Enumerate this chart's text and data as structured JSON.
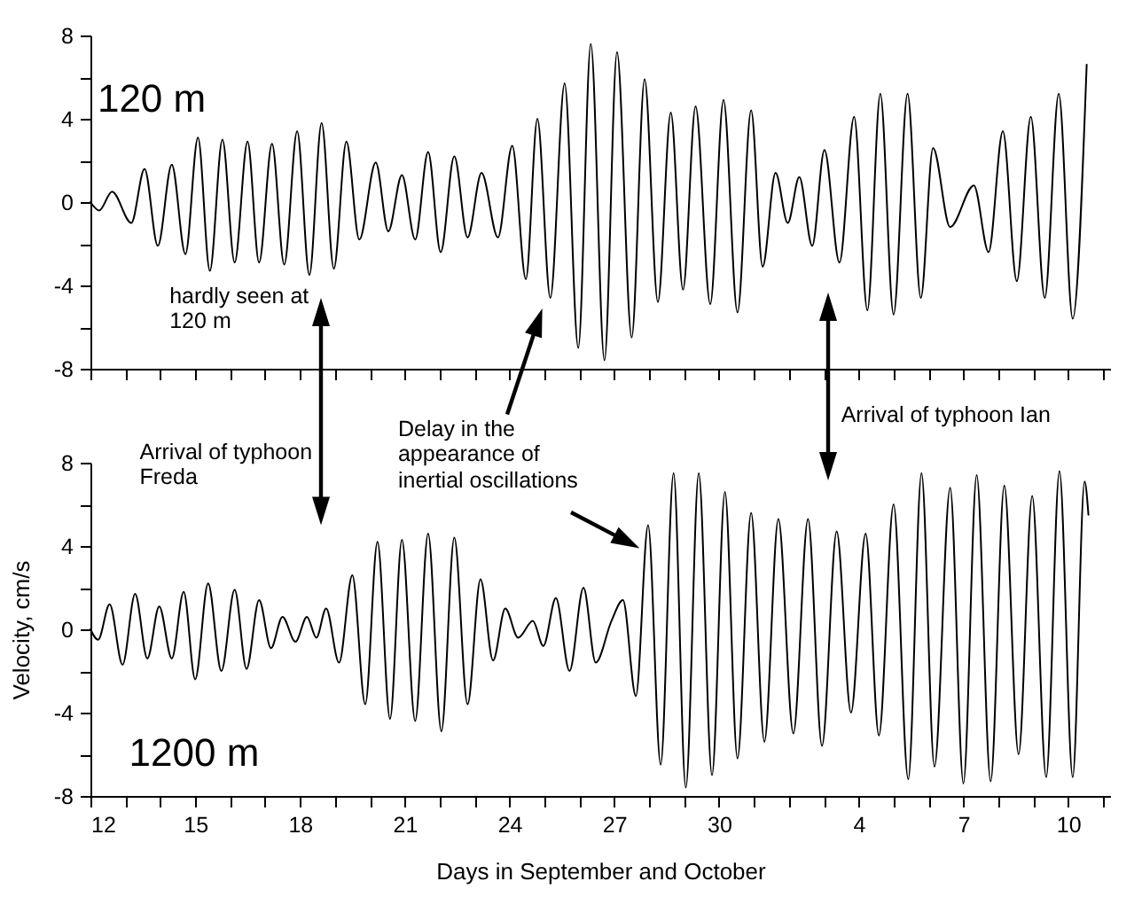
{
  "chart_data": [
    {
      "type": "line",
      "xlim": [
        "--09-12",
        "--10-11T04:48"
      ],
      "ylim": [
        -8,
        8
      ],
      "xticks": [
        {
          "value": "--09-12",
          "label": null
        },
        {
          "value": "--09-13",
          "label": null
        },
        {
          "value": "--09-14",
          "label": null
        },
        {
          "value": "--09-15",
          "label": null
        },
        {
          "value": "--09-16",
          "label": null
        },
        {
          "value": "--09-17",
          "label": null
        },
        {
          "value": "--09-18",
          "label": null
        },
        {
          "value": "--09-19",
          "label": null
        },
        {
          "value": "--09-20",
          "label": null
        },
        {
          "value": "--09-21",
          "label": null
        },
        {
          "value": "--09-22",
          "label": null
        },
        {
          "value": "--09-23",
          "label": null
        },
        {
          "value": "--09-24",
          "label": null
        },
        {
          "value": "--09-25",
          "label": null
        },
        {
          "value": "--09-26",
          "label": null
        },
        {
          "value": "--09-27",
          "label": null
        },
        {
          "value": "--09-28",
          "label": null
        },
        {
          "value": "--09-29",
          "label": null
        },
        {
          "value": "--09-30",
          "label": null
        },
        {
          "value": "--10-01",
          "label": null
        },
        {
          "value": "--10-02",
          "label": null
        },
        {
          "value": "--10-03",
          "label": null
        },
        {
          "value": "--10-04",
          "label": null
        },
        {
          "value": "--10-05",
          "label": null
        },
        {
          "value": "--10-06",
          "label": null
        },
        {
          "value": "--10-07",
          "label": null
        },
        {
          "value": "--10-08",
          "label": null
        },
        {
          "value": "--10-09",
          "label": null
        },
        {
          "value": "--10-10",
          "label": null
        },
        {
          "value": "--10-11",
          "label": null
        }
      ],
      "yticks": [
        -8,
        {
          "value": -6,
          "label": null
        },
        -4,
        {
          "value": -2,
          "label": null
        },
        0,
        {
          "value": 2,
          "label": null
        },
        4,
        {
          "value": 6,
          "label": null
        },
        8
      ],
      "tick_labels": "y",
      "annotations": [
        "120 m",
        "hardly seen at 120 m"
      ],
      "series": [
        {
          "color": "#000000",
          "x": [
            "--09-12T00:00",
            "--09-12T06:00",
            "--09-12T14:53",
            "--09-13T04:05",
            "--09-13T13:12",
            "--09-13T22:19",
            "--09-14T07:55",
            "--09-14T17:17",
            "--09-15T01:55",
            "--09-15T10:05",
            "--09-15T18:43",
            "--09-16T03:07",
            "--09-16T12:00",
            "--09-16T19:55",
            "--09-17T04:48",
            "--09-17T13:12",
            "--09-17T22:05",
            "--09-18T06:29",
            "--09-18T14:53",
            "--09-18T23:17",
            "--09-19T07:55",
            "--09-19T16:48",
            "--09-20T04:05",
            "--09-20T12:43",
            "--09-20T22:05",
            "--09-21T07:12",
            "--09-21T16:05",
            "--09-22T00:43",
            "--09-22T10:05",
            "--09-22T19:12",
            "--09-23T04:48",
            "--09-23T16:05",
            "--09-24T01:55",
            "--09-24T11:17",
            "--09-24T19:12",
            "--09-25T04:05",
            "--09-25T13:55",
            "--09-25T23:17",
            "--09-26T07:55",
            "--09-26T17:17",
            "--09-27T01:55",
            "--09-27T12:00",
            "--09-27T20:53",
            "--09-28T06:00",
            "--09-28T14:53",
            "--09-28T23:17",
            "--09-29T07:55",
            "--09-29T18:00",
            "--09-30T03:07",
            "--09-30T12:43",
            "--09-30T22:05",
            "--10-01T06:00",
            "--10-01T14:53",
            "--10-01T23:17",
            "--10-02T07:12",
            "--10-02T16:05",
            "--10-03T00:29",
            "--10-03T10:48",
            "--10-03T20:53",
            "--10-04T06:00",
            "--10-04T14:53",
            "--10-05T00:00",
            "--10-05T09:36",
            "--10-05T18:43",
            "--10-06T03:07",
            "--10-06T14:53",
            "--10-07T07:12",
            "--10-07T17:17",
            "--10-08T03:07",
            "--10-08T12:43",
            "--10-08T22:19",
            "--10-09T07:55",
            "--10-09T17:31",
            "--10-10T03:07",
            "--10-10T12:43"
          ],
          "values": [
            0,
            -0.4,
            0.5,
            -1.0,
            1.6,
            -2.1,
            1.8,
            -2.5,
            3.1,
            -3.3,
            3.0,
            -2.9,
            2.9,
            -2.9,
            2.8,
            -3.0,
            3.4,
            -3.5,
            3.8,
            -3.2,
            2.9,
            -1.8,
            1.9,
            -1.4,
            1.3,
            -1.8,
            2.4,
            -2.4,
            2.2,
            -1.7,
            1.4,
            -1.7,
            2.7,
            -3.7,
            4.0,
            -4.6,
            5.7,
            -7.0,
            7.6,
            -7.6,
            7.2,
            -6.5,
            5.9,
            -4.8,
            4.3,
            -4.2,
            4.6,
            -4.9,
            4.9,
            -5.3,
            4.4,
            -3.1,
            1.4,
            -1.0,
            1.2,
            -2.1,
            2.5,
            -2.9,
            4.1,
            -5.2,
            5.2,
            -5.4,
            5.2,
            -4.6,
            2.6,
            -1.2,
            0.8,
            -2.4,
            3.4,
            -3.8,
            4.1,
            -4.6,
            5.2,
            -5.6,
            6.6
          ]
        }
      ]
    },
    {
      "type": "line",
      "xlim": [
        "--09-12",
        "--10-11T04:48"
      ],
      "ylim": [
        -8,
        8
      ],
      "xlabel": "Days in September and October",
      "ylabel": "Velocity, cm/s",
      "xticks": [
        {
          "value": "--09-12",
          "label": "12"
        },
        {
          "value": "--09-13",
          "label": null
        },
        {
          "value": "--09-14",
          "label": null
        },
        {
          "value": "--09-15",
          "label": "15"
        },
        {
          "value": "--09-16",
          "label": null
        },
        {
          "value": "--09-17",
          "label": null
        },
        {
          "value": "--09-18",
          "label": "18"
        },
        {
          "value": "--09-19",
          "label": null
        },
        {
          "value": "--09-20",
          "label": null
        },
        {
          "value": "--09-21",
          "label": "21"
        },
        {
          "value": "--09-22",
          "label": null
        },
        {
          "value": "--09-23",
          "label": null
        },
        {
          "value": "--09-24",
          "label": "24"
        },
        {
          "value": "--09-25",
          "label": null
        },
        {
          "value": "--09-26",
          "label": null
        },
        {
          "value": "--09-27",
          "label": "27"
        },
        {
          "value": "--09-28",
          "label": null
        },
        {
          "value": "--09-29",
          "label": null
        },
        {
          "value": "--09-30",
          "label": "30"
        },
        {
          "value": "--10-01",
          "label": null
        },
        {
          "value": "--10-02",
          "label": null
        },
        {
          "value": "--10-03",
          "label": null
        },
        {
          "value": "--10-04",
          "label": "4"
        },
        {
          "value": "--10-05",
          "label": null
        },
        {
          "value": "--10-06",
          "label": null
        },
        {
          "value": "--10-07",
          "label": "7"
        },
        {
          "value": "--10-08",
          "label": null
        },
        {
          "value": "--10-09",
          "label": null
        },
        {
          "value": "--10-10",
          "label": "10"
        },
        {
          "value": "--10-11",
          "label": null
        }
      ],
      "yticks": [
        -8,
        {
          "value": -6,
          "label": null
        },
        -4,
        {
          "value": -2,
          "label": null
        },
        0,
        {
          "value": 2,
          "label": null
        },
        4,
        {
          "value": 6,
          "label": null
        },
        8
      ],
      "annotations": [
        "Arrival of typhoon Freda",
        "Delay in the appearance of inertial oscillations",
        "Arrival of typhoon Ian",
        "1200 m"
      ],
      "series": [
        {
          "color": "#000000",
          "x": [
            "--09-12T00:00",
            "--09-12T05:17",
            "--09-12T13:12",
            "--09-12T22:05",
            "--09-13T06:43",
            "--09-13T15:07",
            "--09-13T23:17",
            "--09-14T07:55",
            "--09-14T16:05",
            "--09-15T00:00",
            "--09-15T08:53",
            "--09-15T18:00",
            "--09-16T03:07",
            "--09-16T11:17",
            "--09-16T19:55",
            "--09-17T04:05",
            "--09-17T12:00",
            "--09-17T20:53",
            "--09-18T04:48",
            "--09-18T11:17",
            "--09-18T18:00",
            "--09-19T02:53",
            "--09-19T12:00",
            "--09-19T20:53",
            "--09-20T05:17",
            "--09-20T13:55",
            "--09-20T22:05",
            "--09-21T07:12",
            "--09-21T16:05",
            "--09-22T01:12",
            "--09-22T10:05",
            "--09-22T19:12",
            "--09-23T04:05",
            "--09-23T12:43",
            "--09-23T21:07",
            "--09-24T06:00",
            "--09-24T16:05",
            "--09-24T23:17",
            "--09-25T07:55",
            "--09-25T17:17",
            "--09-26T02:53",
            "--09-26T11:17",
            "--09-26T22:05",
            "--09-27T06:00",
            "--09-27T14:53",
            "--09-27T23:17",
            "--09-28T07:55",
            "--09-28T16:48",
            "--09-29T01:12",
            "--09-29T10:05",
            "--09-29T19:12",
            "--09-30T04:05",
            "--09-30T12:43",
            "--09-30T22:05",
            "--10-01T07:12",
            "--10-01T16:48",
            "--10-02T03:07",
            "--10-02T13:12",
            "--10-02T22:48",
            "--10-03T08:53",
            "--10-03T18:43",
            "--10-04T04:48",
            "--10-04T13:55",
            "--10-05T00:00",
            "--10-05T10:05",
            "--10-05T19:12",
            "--10-06T04:05",
            "--10-06T14:53",
            "--10-07T00:00",
            "--10-07T09:07",
            "--10-07T18:43",
            "--10-08T04:05",
            "--10-08T13:55",
            "--10-08T23:17",
            "--10-09T08:53",
            "--10-09T18:00",
            "--10-10T03:07",
            "--10-10T11:17",
            "--10-10T13:55"
          ],
          "values": [
            0,
            -0.5,
            1.2,
            -1.7,
            1.7,
            -1.4,
            1.1,
            -1.4,
            1.8,
            -2.4,
            2.2,
            -2.0,
            1.9,
            -1.9,
            1.4,
            -0.9,
            0.6,
            -0.6,
            0.6,
            -0.4,
            1.0,
            -1.6,
            2.6,
            -3.6,
            4.2,
            -4.3,
            4.3,
            -4.4,
            4.6,
            -4.9,
            4.4,
            -3.6,
            2.4,
            -1.5,
            1.0,
            -0.4,
            0.4,
            -0.8,
            1.5,
            -2.0,
            2.0,
            -1.6,
            0.4,
            1.4,
            -3.2,
            5.0,
            -6.5,
            7.5,
            -7.6,
            7.5,
            -7.0,
            6.6,
            -6.2,
            5.6,
            -5.4,
            5.3,
            -5.0,
            5.3,
            -5.6,
            4.7,
            -4.0,
            4.6,
            -5.1,
            6.0,
            -7.2,
            7.5,
            -6.6,
            6.8,
            -7.4,
            7.4,
            -7.3,
            6.9,
            -6.0,
            6.4,
            -7.1,
            7.6,
            -7.1,
            7.1,
            5.5
          ]
        }
      ]
    }
  ]
}
